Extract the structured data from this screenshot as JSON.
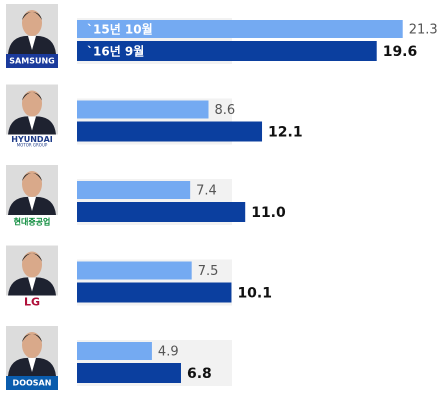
{
  "chart_data": {
    "type": "bar",
    "orientation": "horizontal",
    "categories": [
      "SAMSUNG",
      "HYUNDAI",
      "현대중공업",
      "LG",
      "DOOSAN"
    ],
    "category_sublabels": [
      null,
      "MOTOR GROUP",
      null,
      null,
      null
    ],
    "series": [
      {
        "name": "`15년 10월",
        "color": "#74aaf2",
        "values": [
          21.3,
          8.6,
          7.4,
          7.5,
          4.9
        ]
      },
      {
        "name": "`16년 9월",
        "color": "#0b3f9f",
        "values": [
          19.6,
          12.1,
          11.0,
          10.1,
          6.8
        ],
        "value_labels": [
          "19.6",
          "12.1",
          "11.0",
          "10.1",
          "6.8"
        ]
      }
    ],
    "xlim": [
      0,
      24
    ]
  }
}
